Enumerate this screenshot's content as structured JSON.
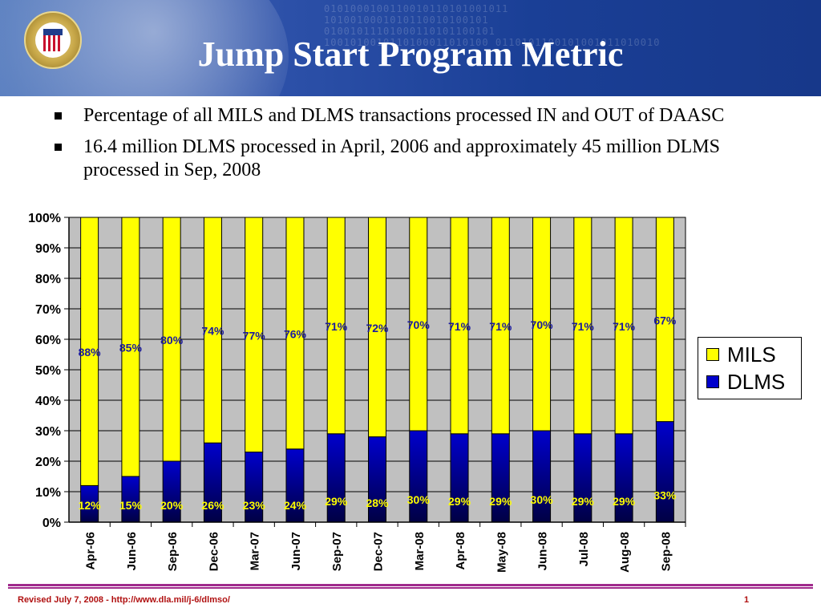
{
  "slide": {
    "title": "Jump Start Program Metric",
    "bullets": [
      "Percentage of all MILS and DLMS transactions processed IN and OUT of DAASC",
      "16.4 million DLMS processed in April, 2006 and approximately 45 million DLMS processed in Sep, 2008"
    ],
    "footer": "Revised July 7, 2008 - http://www.dla.mil/j-6/dlmso/",
    "page_number": "1",
    "header_binary": "0101000100110010110101001011 1010010001010110010100101 01001011101000110101100101 1001010010110100011010100 0110101100101001011010010",
    "colors": {
      "header": "#1a3f96",
      "mils": "#ffff00",
      "dlms": "#0000cc",
      "plot_bg": "#c0c0c0",
      "footer_text": "#b01010",
      "footer_line": "#a02a8c"
    }
  },
  "chart_data": {
    "type": "bar",
    "stacked": true,
    "categories": [
      "Apr-06",
      "Jun-06",
      "Sep-06",
      "Dec-06",
      "Mar-07",
      "Jun-07",
      "Sep-07",
      "Dec-07",
      "Mar-08",
      "Apr-08",
      "May-08",
      "Jun-08",
      "Jul-08",
      "Aug-08",
      "Sep-08"
    ],
    "series": [
      {
        "name": "DLMS",
        "values": [
          12,
          15,
          20,
          26,
          23,
          24,
          29,
          28,
          30,
          29,
          29,
          30,
          29,
          29,
          33
        ],
        "color": "#0000cc"
      },
      {
        "name": "MILS",
        "values": [
          88,
          85,
          80,
          74,
          77,
          76,
          71,
          72,
          70,
          71,
          71,
          70,
          71,
          71,
          67
        ],
        "color": "#ffff00"
      }
    ],
    "data_labels": {
      "DLMS": [
        "12%",
        "15%",
        "20%",
        "26%",
        "23%",
        "24%",
        "29%",
        "28%",
        "30%",
        "29%",
        "29%",
        "30%",
        "29%",
        "29%",
        "33%"
      ],
      "MILS": [
        "88%",
        "85%",
        "80%",
        "74%",
        "77%",
        "76%",
        "71%",
        "72%",
        "70%",
        "71%",
        "71%",
        "70%",
        "71%",
        "71%",
        "67%"
      ]
    },
    "yticks": [
      "0%",
      "10%",
      "20%",
      "30%",
      "40%",
      "50%",
      "60%",
      "70%",
      "80%",
      "90%",
      "100%"
    ],
    "ylim": [
      0,
      100
    ],
    "grid": true,
    "legend": {
      "position": "right",
      "entries": [
        "MILS",
        "DLMS"
      ]
    }
  }
}
